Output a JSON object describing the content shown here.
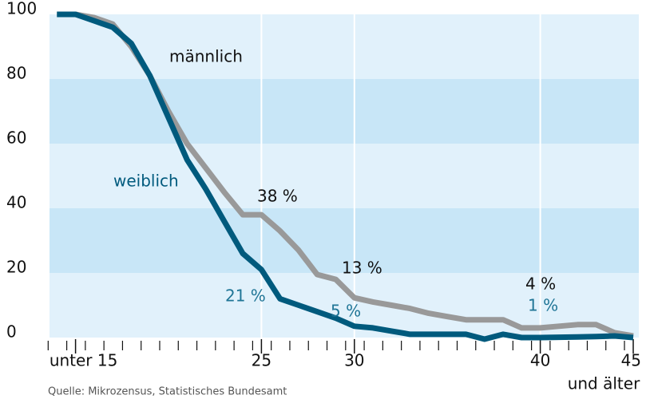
{
  "chart_data": {
    "type": "line",
    "x": [
      14,
      15,
      16,
      17,
      18,
      19,
      20,
      21,
      22,
      23,
      24,
      25,
      26,
      27,
      28,
      29,
      30,
      31,
      32,
      33,
      34,
      35,
      36,
      37,
      38,
      39,
      40,
      41,
      42,
      43,
      44,
      45
    ],
    "series": [
      {
        "name": "männlich",
        "color": "#999999",
        "values": [
          100,
          100,
          99,
          97,
          90,
          81,
          70,
          60,
          52.5,
          45,
          38,
          38,
          33,
          27,
          19.5,
          18,
          12.3,
          11,
          10,
          9,
          7.5,
          6.5,
          5.5,
          5.5,
          5.5,
          3,
          3,
          3.5,
          4,
          4,
          1.5,
          0.5
        ]
      },
      {
        "name": "weiblich",
        "color": "#005a7d",
        "values": [
          100,
          100,
          98,
          96,
          91,
          81,
          68,
          55,
          46,
          36,
          26,
          21,
          12,
          10,
          8,
          6,
          3.5,
          3,
          2,
          1,
          1,
          1,
          1,
          -0.5,
          1,
          0,
          0,
          0.1,
          0.2,
          0.3,
          0.5,
          0
        ]
      }
    ],
    "xlim": [
      13.6,
      45.3
    ],
    "xticks": [
      {
        "value": 15,
        "label": "unter 15"
      },
      25,
      30,
      40,
      45
    ],
    "x_axis_note": "und älter",
    "ylim": [
      0,
      100
    ],
    "yticks": [
      0,
      20,
      40,
      60,
      80,
      100
    ],
    "band_colors": [
      "#e1f1fb",
      "#c8e6f7"
    ],
    "grid": true,
    "annotations": [
      {
        "text": "männlich",
        "color": "#111111"
      },
      {
        "text": "weiblich",
        "color": "#005a7d"
      },
      {
        "text": "38 %",
        "color": "#111111"
      },
      {
        "text": "13 %",
        "color": "#111111"
      },
      {
        "text": "21 %",
        "color": "#1f7596"
      },
      {
        "text": "5 %",
        "color": "#1f7596"
      },
      {
        "text": "4 %",
        "color": "#111111"
      },
      {
        "text": "1 %",
        "color": "#1f7596"
      }
    ],
    "source": "Quelle: Mikrozensus, Statistisches Bundesamt"
  }
}
